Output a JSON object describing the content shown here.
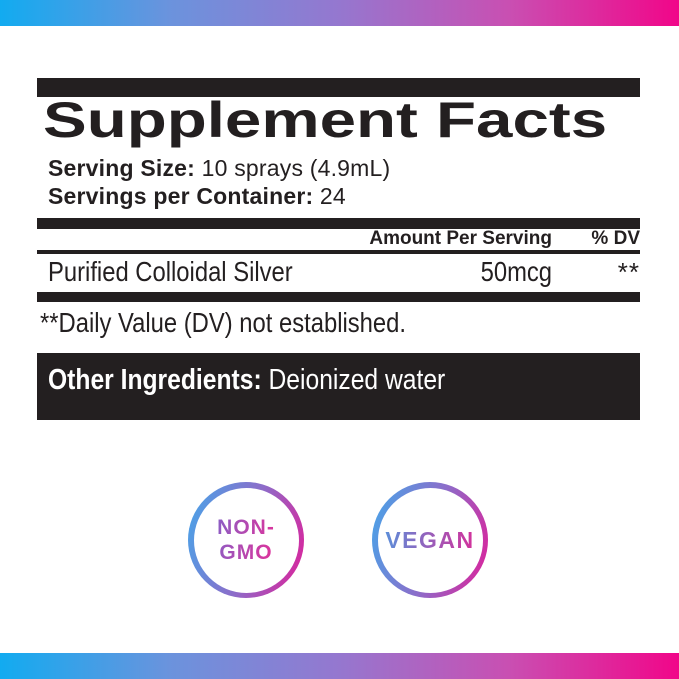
{
  "label": {
    "title": "Supplement Facts",
    "serving_size_label": "Serving Size:",
    "serving_size_value": "10 sprays (4.9mL)",
    "servings_per_container_label": "Servings per Container:",
    "servings_per_container_value": "24",
    "column_headers": {
      "amount": "Amount Per Serving",
      "dv": "% DV"
    },
    "rows": [
      {
        "name": "Purified Colloidal Silver",
        "amount": "50mcg",
        "dv": "**"
      }
    ],
    "footnote": "**Daily Value (DV) not established.",
    "other_ingredients_label": "Other Ingredients:",
    "other_ingredients_value": "Deionized water"
  },
  "badges": [
    {
      "name": "non-gmo",
      "line1": "NON-",
      "line2": "GMO"
    },
    {
      "name": "vegan",
      "line1": "VEGAN"
    }
  ],
  "colors": {
    "gradient_blue": "#12abf0",
    "gradient_purple": "#9577cf",
    "gradient_pink": "#f10689",
    "ink": "#231f20",
    "badge_ring_blue": "#45a7ea",
    "badge_ring_pink": "#e11d98"
  }
}
